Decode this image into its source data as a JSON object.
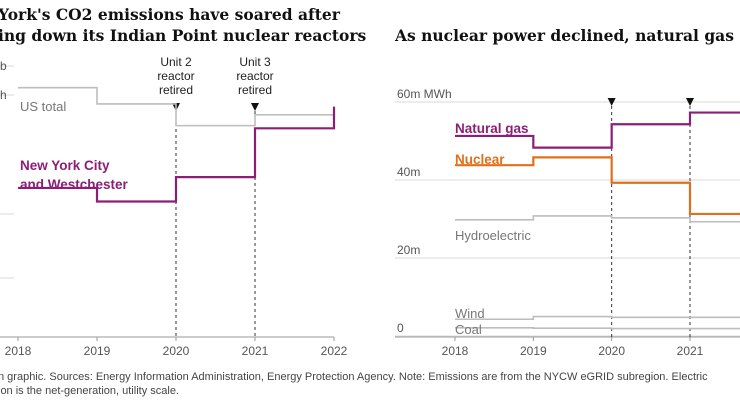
{
  "left_title_lines": [
    "York's CO2 emissions have soared after",
    "ing down its Indian Point nuclear reactors"
  ],
  "right_title": "As nuclear power declined, natural gas expande",
  "source_lines": [
    "n graphic. Sources: Energy Information Administration, Energy Protection Agency. Note: Emissions are from the NYCW eGRID subregion. Electric",
    "ion is the net-generation, utility scale."
  ],
  "colors": {
    "purple": "#8b1f76",
    "orange": "#e0701c",
    "gray": "#bdbdbd",
    "grid": "#d9d9d9"
  },
  "chart_data": [
    {
      "type": "line",
      "step": true,
      "x_ticks": [
        "2018",
        "2019",
        "2020",
        "2021",
        "2022"
      ],
      "y_ticks_partial": [
        "b",
        "h"
      ],
      "annotations": [
        {
          "x": 2020,
          "lines": [
            "Unit 2",
            "reactor",
            "retired"
          ]
        },
        {
          "x": 2021,
          "lines": [
            "Unit 3",
            "reactor",
            "retired"
          ]
        }
      ],
      "series": [
        {
          "name": "US total",
          "label_lines": [
            "US total"
          ],
          "color": "gray",
          "x": [
            2018,
            2019,
            2020,
            2021,
            2022
          ],
          "y": [
            0.92,
            0.86,
            0.78,
            0.82,
            0.82
          ]
        },
        {
          "name": "New York City and Westchester",
          "label_lines": [
            "New York City",
            "and Westchester"
          ],
          "color": "purple",
          "x": [
            2018,
            2019,
            2020,
            2021,
            2022
          ],
          "y": [
            0.55,
            0.5,
            0.59,
            0.77,
            0.85
          ]
        }
      ]
    },
    {
      "type": "line",
      "step": true,
      "x_ticks": [
        "2018",
        "2019",
        "2020",
        "2021"
      ],
      "ylim": [
        0,
        60
      ],
      "y_ticks": [
        {
          "value": 60,
          "label": "60m MWh"
        },
        {
          "value": 40,
          "label": "40m"
        },
        {
          "value": 20,
          "label": "20m"
        },
        {
          "value": 0,
          "label": "0"
        }
      ],
      "markers_at": [
        2020,
        2021
      ],
      "series": [
        {
          "name": "Natural gas",
          "color": "purple",
          "x": [
            2018,
            2019,
            2020,
            2021,
            2022
          ],
          "y": [
            49.5,
            46.5,
            52.5,
            55.5,
            55.5
          ]
        },
        {
          "name": "Nuclear",
          "color": "orange",
          "x": [
            2018,
            2019,
            2020,
            2021,
            2022
          ],
          "y": [
            42,
            44,
            37.5,
            29.5,
            29.5
          ]
        },
        {
          "name": "Hydroelectric",
          "color": "gray",
          "x": [
            2018,
            2019,
            2020,
            2021,
            2022
          ],
          "y": [
            28,
            29,
            28.5,
            27.5,
            28
          ]
        },
        {
          "name": "Wind",
          "color": "gray",
          "x": [
            2018,
            2019,
            2020,
            2021,
            2022
          ],
          "y": [
            2.5,
            3.2,
            3,
            3,
            3
          ]
        },
        {
          "name": "Coal",
          "color": "gray",
          "x": [
            2018,
            2019,
            2020,
            2021,
            2022
          ],
          "y": [
            0.3,
            0.2,
            0.1,
            0.1,
            0.1
          ]
        }
      ]
    }
  ]
}
